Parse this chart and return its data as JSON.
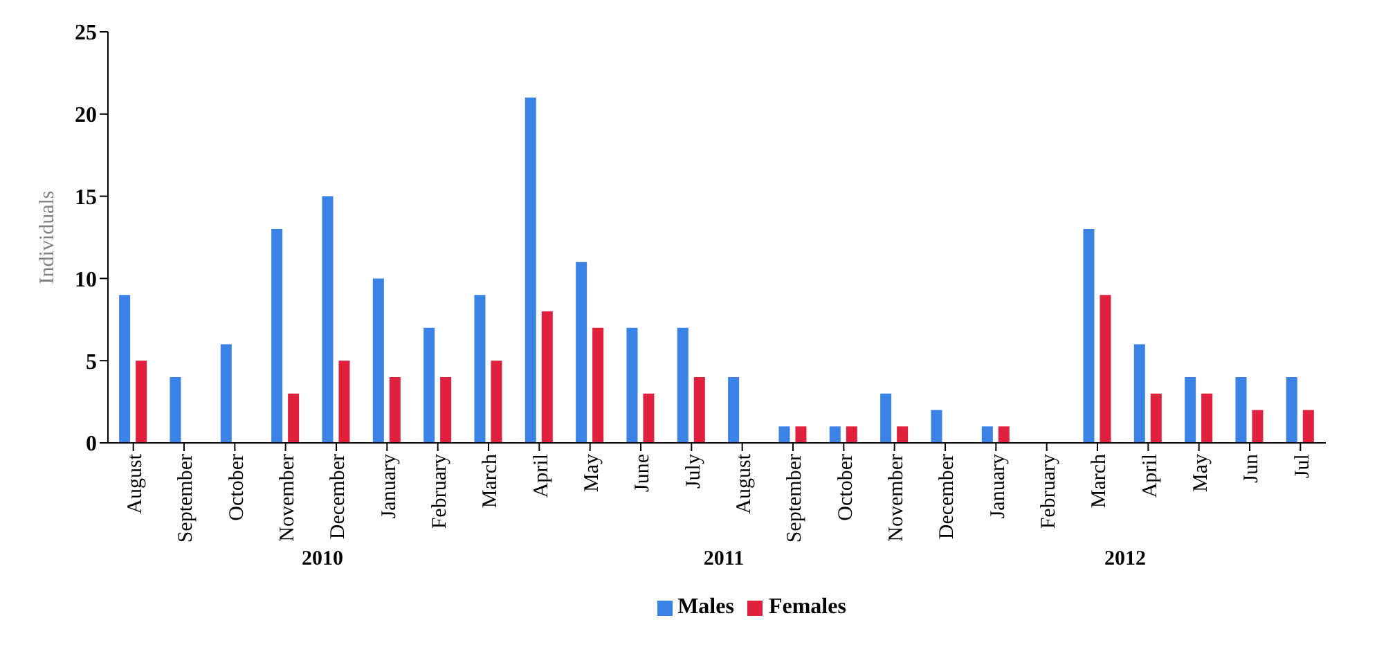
{
  "chart_data": {
    "type": "bar",
    "ylabel": "Individuals",
    "categories": [
      "August",
      "September",
      "October",
      "November",
      "December",
      "January",
      "February",
      "March",
      "April",
      "May",
      "June",
      "July",
      "August",
      "September",
      "October",
      "November",
      "December",
      "January",
      "February",
      "March",
      "April",
      "May",
      "Jun",
      "Jul"
    ],
    "series": [
      {
        "name": "Males",
        "color": "#3b82e6",
        "values": [
          9,
          4,
          6,
          13,
          15,
          10,
          7,
          9,
          21,
          11,
          7,
          7,
          4,
          1,
          1,
          3,
          2,
          1,
          0,
          13,
          6,
          4,
          4,
          4
        ]
      },
      {
        "name": "Females",
        "color": "#e0203c",
        "values": [
          5,
          0,
          0,
          3,
          5,
          4,
          4,
          5,
          8,
          7,
          3,
          4,
          0,
          1,
          1,
          1,
          0,
          1,
          0,
          9,
          3,
          3,
          2,
          2
        ]
      }
    ],
    "ylim": [
      0,
      25
    ],
    "yticks": [
      0,
      5,
      10,
      15,
      20,
      25
    ],
    "legend": "bottom",
    "annotations": [
      "2010",
      "2011",
      "2012"
    ]
  }
}
